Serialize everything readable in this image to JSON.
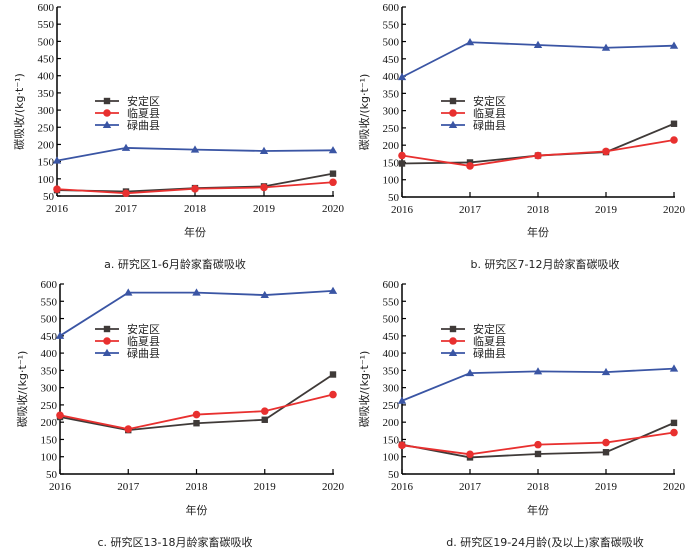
{
  "chart_data": [
    {
      "type": "line",
      "panel": "a",
      "title": "a. 研究区1-6月龄家畜碳吸收",
      "xlabel": "年份",
      "ylabel": "碳吸收/(kg·t⁻¹)",
      "x": [
        "2016",
        "2017",
        "2018",
        "2019",
        "2020"
      ],
      "ylim": [
        50,
        600
      ],
      "yticks": [
        "50",
        "100",
        "150",
        "200",
        "250",
        "300",
        "350",
        "400",
        "450",
        "500",
        "550",
        "600"
      ],
      "legend_position": "middle-left",
      "grid": false,
      "series": [
        {
          "name": "安定区",
          "color": "#3f3a38",
          "marker": "square",
          "values": [
            67,
            63,
            73,
            78,
            115
          ]
        },
        {
          "name": "临夏县",
          "color": "#e8302f",
          "marker": "circle",
          "values": [
            70,
            58,
            71,
            75,
            90
          ]
        },
        {
          "name": "碌曲县",
          "color": "#3a55a4",
          "marker": "triangle",
          "values": [
            153,
            190,
            185,
            181,
            183
          ]
        }
      ]
    },
    {
      "type": "line",
      "panel": "b",
      "title": "b. 研究区7-12月龄家畜碳吸收",
      "xlabel": "年份",
      "ylabel": "碳吸收/(kg·t⁻¹)",
      "x": [
        "2016",
        "2017",
        "2018",
        "2019",
        "2020"
      ],
      "ylim": [
        50,
        600
      ],
      "yticks": [
        "50",
        "100",
        "150",
        "200",
        "250",
        "300",
        "350",
        "400",
        "450",
        "500",
        "550",
        "600"
      ],
      "legend_position": "middle-left",
      "grid": false,
      "series": [
        {
          "name": "安定区",
          "color": "#3f3a38",
          "marker": "square",
          "values": [
            147,
            150,
            170,
            180,
            262
          ]
        },
        {
          "name": "临夏县",
          "color": "#e8302f",
          "marker": "circle",
          "values": [
            170,
            140,
            170,
            182,
            215
          ]
        },
        {
          "name": "碌曲县",
          "color": "#3a55a4",
          "marker": "triangle",
          "values": [
            397,
            498,
            490,
            482,
            488
          ]
        }
      ]
    },
    {
      "type": "line",
      "panel": "c",
      "title": "c. 研究区13-18月龄家畜碳吸收",
      "xlabel": "年份",
      "ylabel": "碳吸收/(kg·t⁻¹)",
      "x": [
        "2016",
        "2017",
        "2018",
        "2019",
        "2020"
      ],
      "ylim": [
        50,
        600
      ],
      "yticks": [
        "50",
        "100",
        "150",
        "200",
        "250",
        "300",
        "350",
        "400",
        "450",
        "500",
        "550",
        "600"
      ],
      "legend_position": "upper-left",
      "grid": false,
      "series": [
        {
          "name": "安定区",
          "color": "#3f3a38",
          "marker": "square",
          "values": [
            215,
            177,
            197,
            207,
            338
          ]
        },
        {
          "name": "临夏县",
          "color": "#e8302f",
          "marker": "circle",
          "values": [
            220,
            180,
            222,
            232,
            280
          ]
        },
        {
          "name": "碌曲县",
          "color": "#3a55a4",
          "marker": "triangle",
          "values": [
            450,
            575,
            575,
            568,
            580
          ]
        }
      ]
    },
    {
      "type": "line",
      "panel": "d",
      "title": "d. 研究区19-24月龄(及以上)家畜碳吸收",
      "xlabel": "年份",
      "ylabel": "碳吸收/(kg·t⁻¹)",
      "x": [
        "2016",
        "2017",
        "2018",
        "2019",
        "2020"
      ],
      "ylim": [
        50,
        600
      ],
      "yticks": [
        "50",
        "100",
        "150",
        "200",
        "250",
        "300",
        "350",
        "400",
        "450",
        "500",
        "550",
        "600"
      ],
      "legend_position": "upper-left",
      "grid": false,
      "series": [
        {
          "name": "安定区",
          "color": "#3f3a38",
          "marker": "square",
          "values": [
            135,
            98,
            108,
            113,
            198
          ]
        },
        {
          "name": "临夏县",
          "color": "#e8302f",
          "marker": "circle",
          "values": [
            133,
            107,
            135,
            141,
            170
          ]
        },
        {
          "name": "碌曲县",
          "color": "#3a55a4",
          "marker": "triangle",
          "values": [
            262,
            342,
            347,
            345,
            355
          ]
        }
      ]
    }
  ]
}
